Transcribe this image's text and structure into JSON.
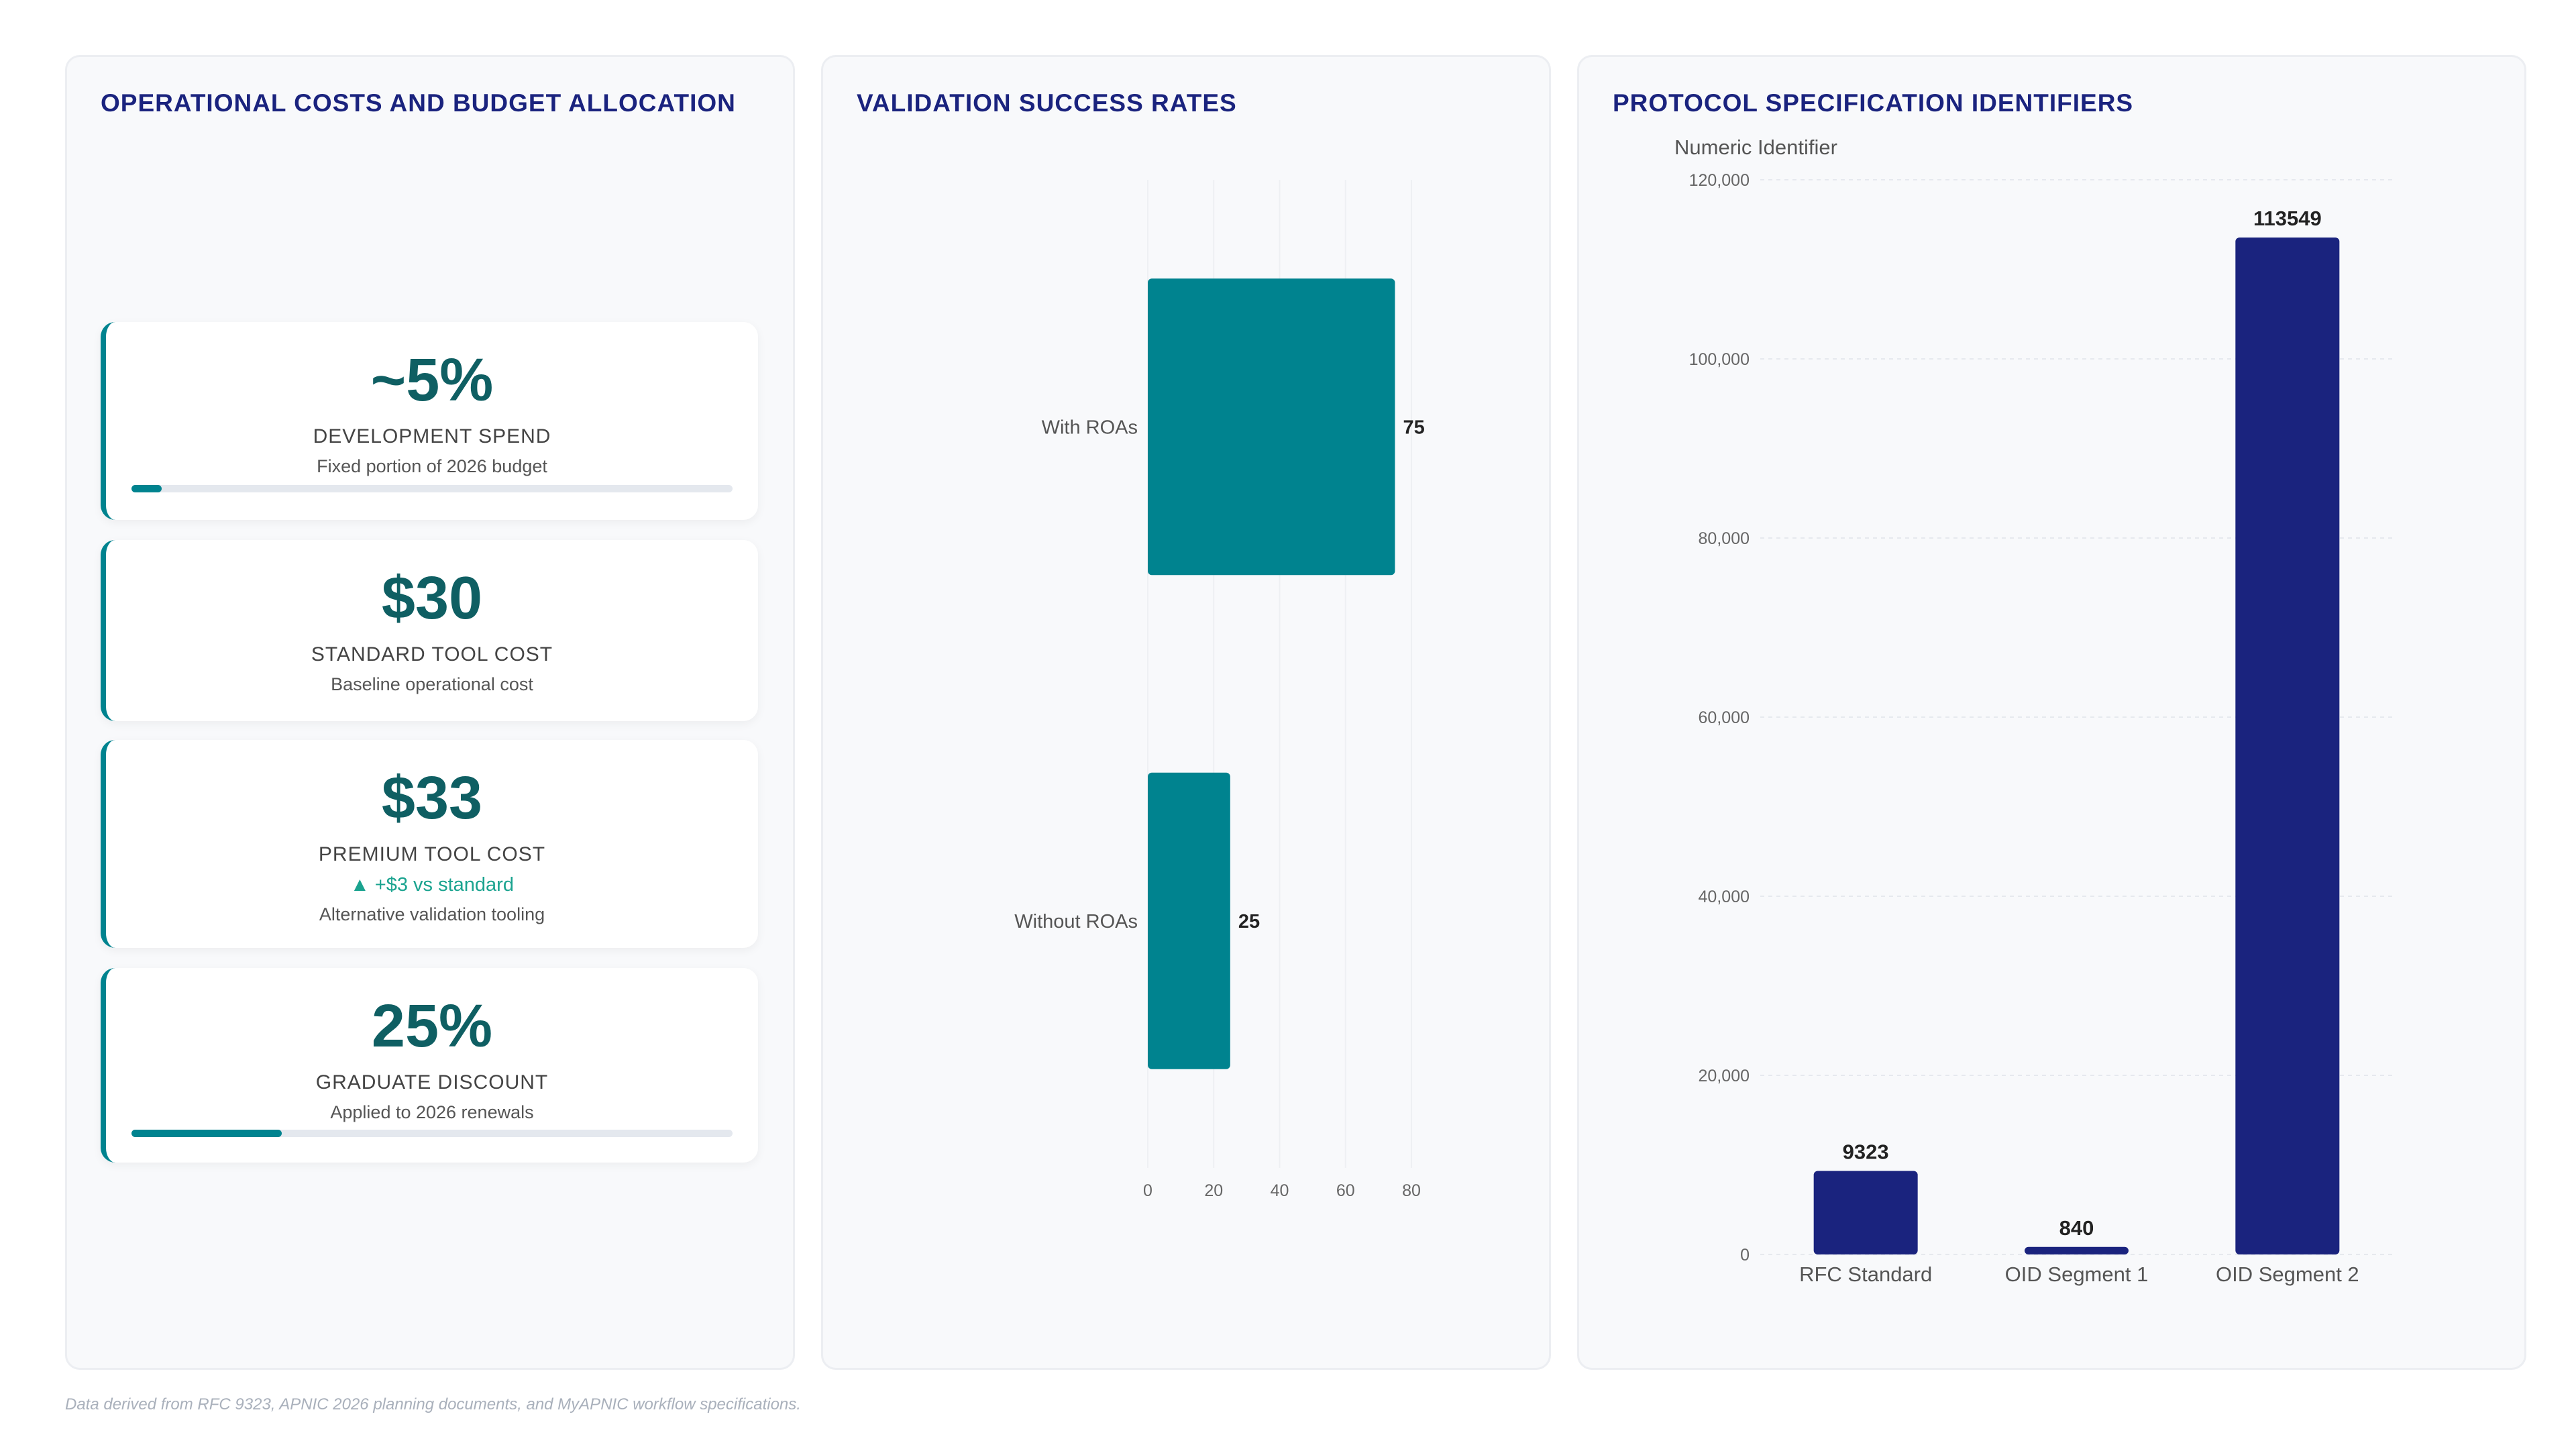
{
  "colors": {
    "title": "#1a237e",
    "accent_teal": "#00838f",
    "kpi_value": "#0f5f63",
    "navy_bar": "#1a237e",
    "delta_up": "#1aa38f",
    "grid": "#eef0f3"
  },
  "panels": {
    "costs": {
      "title": "OPERATIONAL COSTS AND BUDGET ALLOCATION",
      "cards": [
        {
          "value": "~5%",
          "label": "DEVELOPMENT SPEND",
          "sub": "Fixed portion of 2026 budget",
          "progress_fraction": 0.05
        },
        {
          "value": "$30",
          "label": "STANDARD TOOL COST",
          "sub": "Baseline operational cost"
        },
        {
          "value": "$33",
          "label": "PREMIUM TOOL COST",
          "delta": "▲ +$3 vs standard",
          "sub": "Alternative validation tooling"
        },
        {
          "value": "25%",
          "label": "GRADUATE DISCOUNT",
          "sub": "Applied to 2026 renewals",
          "progress_fraction": 0.25
        }
      ]
    },
    "validation": {
      "title": "VALIDATION SUCCESS RATES"
    },
    "protocol": {
      "title": "PROTOCOL SPECIFICATION IDENTIFIERS"
    }
  },
  "chart_data": [
    {
      "type": "bar",
      "orientation": "horizontal",
      "title": "VALIDATION SUCCESS RATES",
      "categories": [
        "With ROAs",
        "Without ROAs"
      ],
      "values": [
        75,
        25
      ],
      "value_labels": [
        "75",
        "25"
      ],
      "xlim": [
        0,
        80
      ],
      "xticks": [
        "0",
        "20",
        "40",
        "60",
        "80"
      ],
      "grid": "vertical",
      "color": "#00838f"
    },
    {
      "type": "bar",
      "orientation": "vertical",
      "title": "PROTOCOL SPECIFICATION IDENTIFIERS",
      "ylabel": "Numeric Identifier",
      "categories": [
        "RFC Standard",
        "OID Segment 1",
        "OID Segment 2"
      ],
      "values": [
        9323,
        840,
        113549
      ],
      "value_labels": [
        "9323",
        "840",
        "113549"
      ],
      "ylim": [
        0,
        120000
      ],
      "yticks": [
        "0",
        "20,000",
        "40,000",
        "60,000",
        "80,000",
        "100,000",
        "120,000"
      ],
      "grid": "horizontal-dashed",
      "color": "#1a237e"
    }
  ],
  "footnote": "Data derived from RFC 9323, APNIC 2026 planning documents, and MyAPNIC workflow specifications."
}
